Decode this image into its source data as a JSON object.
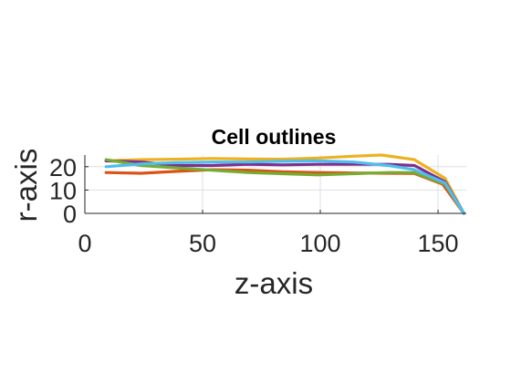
{
  "chart_data": {
    "type": "line",
    "title": "Cell outlines",
    "xlabel": "z-axis",
    "ylabel": "r-axis",
    "xlim": [
      0,
      162
    ],
    "ylim": [
      0,
      25
    ],
    "xticks": [
      0,
      50,
      100,
      150
    ],
    "yticks": [
      0,
      10,
      20
    ],
    "xtick_labels": [
      "0",
      "50",
      "100",
      "150"
    ],
    "ytick_labels": [
      "0",
      "10",
      "20"
    ],
    "grid": true,
    "series": [
      {
        "color": "#d95319",
        "x": [
          9,
          24,
          39,
          54,
          69,
          84,
          99,
          114,
          129,
          140,
          152,
          161
        ],
        "y": [
          17.5,
          17.2,
          18,
          18.7,
          18.5,
          17.8,
          17.5,
          17.3,
          17.2,
          17.1,
          12.5,
          0
        ]
      },
      {
        "color": "#edb120",
        "x": [
          9,
          24,
          39,
          54,
          69,
          84,
          99,
          114,
          126,
          140,
          153,
          161
        ],
        "y": [
          22.5,
          23,
          23.2,
          23.5,
          23.3,
          23.2,
          23.7,
          24.5,
          25,
          23,
          15,
          0
        ]
      },
      {
        "color": "#7e2f8e",
        "x": [
          9,
          24,
          39,
          54,
          69,
          84,
          99,
          114,
          129,
          140,
          153,
          161
        ],
        "y": [
          22.5,
          22,
          20.5,
          20.5,
          21,
          20.8,
          21,
          21,
          21,
          20.5,
          13.5,
          0
        ]
      },
      {
        "color": "#77ac30",
        "x": [
          9,
          24,
          39,
          54,
          69,
          84,
          99,
          114,
          129,
          140,
          153,
          161
        ],
        "y": [
          23,
          20.5,
          19.5,
          18.5,
          17.5,
          17,
          16.5,
          17,
          17.5,
          17.5,
          12.5,
          0
        ]
      },
      {
        "color": "#4dbeee",
        "x": [
          9,
          24,
          39,
          54,
          69,
          84,
          99,
          114,
          129,
          140,
          153,
          161
        ],
        "y": [
          20,
          21.2,
          21.7,
          22,
          22,
          22.3,
          22.5,
          22,
          20.5,
          18.7,
          13,
          0
        ]
      }
    ]
  }
}
